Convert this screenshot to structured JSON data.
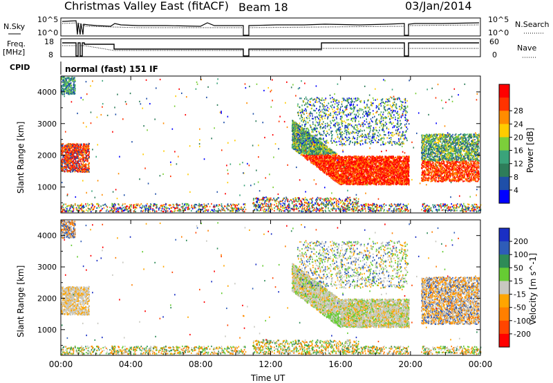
{
  "header": {
    "title": "Christmas Valley East (fitACF)",
    "beam": "Beam 18",
    "date": "03/Jan/2014"
  },
  "panels": {
    "nsky": {
      "left_label": "N.Sky",
      "right_label": "N.Search",
      "left_ticks": [
        "10^5",
        "10^0"
      ],
      "right_ticks": [
        "10^5",
        "10^0"
      ]
    },
    "freq": {
      "left_label": "Freq.",
      "left_unit": "[MHz]",
      "right_label": "Nave",
      "left_ticks": [
        "18",
        "8"
      ],
      "right_ticks": [
        "60",
        "0"
      ]
    },
    "cpid": {
      "left_label": "CPID",
      "mode_text": "normal (fast) 151 IF"
    }
  },
  "colors": {
    "power": [
      "#0000ff",
      "#1f4fa8",
      "#2e7d5a",
      "#3aa37a",
      "#7ccf3a",
      "#ffcc00",
      "#ff8c00",
      "#ff3300",
      "#ff0000"
    ],
    "velocity": [
      "#1a2fc4",
      "#2e5cb8",
      "#2e8b57",
      "#66cc33",
      "#c8c8c0",
      "#ffa500",
      "#ff7f00",
      "#ff4500",
      "#ff0000"
    ]
  },
  "chart_data": [
    {
      "type": "heatmap",
      "name": "power-panel",
      "ylabel": "Slant Range [km]",
      "yticks": [
        "1000",
        "2000",
        "3000",
        "4000"
      ],
      "ylim": [
        180,
        4500
      ],
      "xlim": [
        0,
        24
      ],
      "colorbar_label": "Power [dB]",
      "colorbar_ticks": [
        "4",
        "8",
        "12",
        "16",
        "20",
        "24",
        "28"
      ]
    },
    {
      "type": "heatmap",
      "name": "velocity-panel",
      "ylabel": "Slant Range [km]",
      "yticks": [
        "1000",
        "2000",
        "3000",
        "4000"
      ],
      "ylim": [
        180,
        4500
      ],
      "xlim": [
        0,
        24
      ],
      "xlabel": "Time UT",
      "xticks": [
        "00:00",
        "04:00",
        "08:00",
        "12:00",
        "16:00",
        "20:00",
        "00:00"
      ],
      "colorbar_label": "Velocity [m s^-1]",
      "colorbar_ticks": [
        "200",
        "100",
        "50",
        "15",
        "-15",
        "-50",
        "-100",
        "-200"
      ]
    }
  ]
}
